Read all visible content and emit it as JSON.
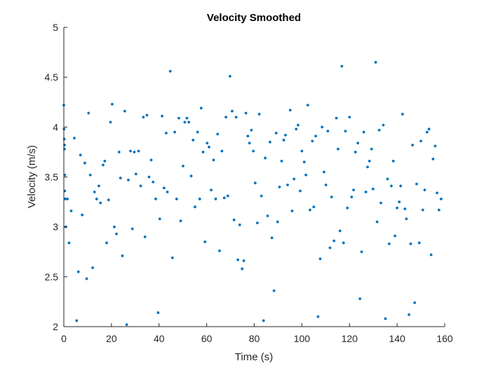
{
  "chart_data": {
    "type": "scatter",
    "title": "Velocity Smoothed",
    "xlabel": "Time (s)",
    "ylabel": "Velocity (m/s)",
    "xlim": [
      0,
      160
    ],
    "ylim": [
      2,
      5
    ],
    "xticks": [
      "0",
      "20",
      "40",
      "60",
      "80",
      "100",
      "120",
      "140",
      "160"
    ],
    "yticks": [
      "2",
      "2.5",
      "3",
      "3.5",
      "4",
      "4.5",
      "5"
    ],
    "grid": false,
    "marker_color": "#0072bd",
    "series": [
      {
        "points": [
          [
            0.0,
            4.22
          ],
          [
            0.1,
            3.98
          ],
          [
            0.2,
            3.88
          ],
          [
            0.3,
            3.82
          ],
          [
            0.3,
            3.78
          ],
          [
            0.4,
            3.52
          ],
          [
            0.4,
            3.36
          ],
          [
            0.6,
            3.28
          ],
          [
            0.8,
            3.0
          ],
          [
            1.5,
            3.28
          ],
          [
            2.2,
            2.84
          ],
          [
            3.1,
            3.16
          ],
          [
            4.4,
            3.89
          ],
          [
            5.4,
            2.06
          ],
          [
            6.1,
            2.55
          ],
          [
            7.0,
            3.72
          ],
          [
            7.7,
            3.12
          ],
          [
            8.8,
            3.64
          ],
          [
            9.6,
            2.48
          ],
          [
            10.4,
            4.14
          ],
          [
            11.1,
            3.52
          ],
          [
            12.1,
            2.59
          ],
          [
            12.9,
            3.35
          ],
          [
            13.8,
            3.28
          ],
          [
            14.7,
            3.41
          ],
          [
            15.4,
            3.24
          ],
          [
            16.5,
            3.62
          ],
          [
            17.2,
            3.66
          ],
          [
            18.0,
            2.84
          ],
          [
            18.8,
            3.27
          ],
          [
            19.6,
            4.05
          ],
          [
            20.3,
            4.23
          ],
          [
            21.2,
            3.0
          ],
          [
            22.1,
            2.93
          ],
          [
            23.2,
            3.75
          ],
          [
            23.8,
            3.49
          ],
          [
            24.6,
            2.71
          ],
          [
            25.6,
            4.16
          ],
          [
            26.4,
            2.02
          ],
          [
            27.1,
            3.47
          ],
          [
            28.0,
            3.76
          ],
          [
            28.8,
            2.98
          ],
          [
            29.6,
            3.75
          ],
          [
            30.3,
            3.53
          ],
          [
            31.4,
            3.76
          ],
          [
            32.3,
            3.41
          ],
          [
            33.4,
            4.1
          ],
          [
            34.1,
            2.9
          ],
          [
            34.9,
            4.12
          ],
          [
            35.8,
            3.5
          ],
          [
            36.7,
            3.67
          ],
          [
            37.5,
            3.45
          ],
          [
            38.6,
            3.28
          ],
          [
            39.6,
            2.14
          ],
          [
            40.3,
            3.08
          ],
          [
            41.3,
            4.11
          ],
          [
            42.1,
            3.39
          ],
          [
            43.0,
            3.94
          ],
          [
            43.5,
            3.35
          ],
          [
            44.7,
            4.56
          ],
          [
            45.6,
            2.69
          ],
          [
            46.6,
            3.95
          ],
          [
            47.4,
            3.28
          ],
          [
            48.3,
            4.09
          ],
          [
            49.1,
            3.06
          ],
          [
            50.1,
            3.61
          ],
          [
            50.8,
            4.05
          ],
          [
            51.7,
            4.09
          ],
          [
            52.5,
            4.05
          ],
          [
            53.5,
            3.51
          ],
          [
            54.3,
            3.87
          ],
          [
            55.1,
            3.2
          ],
          [
            56.2,
            3.95
          ],
          [
            57.1,
            3.28
          ],
          [
            57.7,
            4.19
          ],
          [
            58.5,
            3.75
          ],
          [
            59.3,
            2.85
          ],
          [
            60.2,
            3.84
          ],
          [
            61.0,
            3.8
          ],
          [
            61.9,
            3.37
          ],
          [
            62.9,
            3.67
          ],
          [
            63.8,
            3.28
          ],
          [
            64.6,
            3.93
          ],
          [
            65.4,
            2.76
          ],
          [
            66.4,
            3.76
          ],
          [
            67.4,
            3.29
          ],
          [
            68.1,
            4.1
          ],
          [
            68.9,
            3.31
          ],
          [
            69.8,
            4.51
          ],
          [
            70.7,
            4.16
          ],
          [
            71.5,
            3.07
          ],
          [
            72.4,
            4.1
          ],
          [
            73.1,
            2.67
          ],
          [
            73.9,
            3.02
          ],
          [
            74.9,
            2.58
          ],
          [
            75.6,
            2.66
          ],
          [
            76.5,
            4.14
          ],
          [
            77.3,
            3.91
          ],
          [
            78.0,
            3.84
          ],
          [
            78.8,
            3.97
          ],
          [
            79.6,
            3.76
          ],
          [
            80.4,
            3.44
          ],
          [
            81.3,
            3.04
          ],
          [
            82.1,
            4.13
          ],
          [
            83.0,
            3.31
          ],
          [
            83.9,
            2.06
          ],
          [
            84.6,
            3.69
          ],
          [
            85.6,
            3.11
          ],
          [
            86.6,
            3.85
          ],
          [
            87.4,
            2.89
          ],
          [
            88.3,
            2.36
          ],
          [
            89.2,
            3.94
          ],
          [
            89.8,
            3.05
          ],
          [
            90.6,
            3.4
          ],
          [
            91.5,
            3.66
          ],
          [
            92.4,
            3.87
          ],
          [
            93.1,
            3.92
          ],
          [
            94.0,
            3.42
          ],
          [
            95.1,
            4.17
          ],
          [
            95.9,
            3.16
          ],
          [
            96.7,
            3.48
          ],
          [
            97.6,
            3.98
          ],
          [
            98.4,
            4.02
          ],
          [
            99.3,
            3.36
          ],
          [
            100.0,
            3.76
          ],
          [
            101.0,
            3.65
          ],
          [
            101.7,
            3.52
          ],
          [
            102.5,
            4.22
          ],
          [
            103.4,
            3.17
          ],
          [
            104.4,
            3.86
          ],
          [
            105.0,
            3.2
          ],
          [
            105.8,
            3.91
          ],
          [
            106.8,
            2.1
          ],
          [
            107.7,
            2.68
          ],
          [
            108.5,
            4.0
          ],
          [
            109.3,
            3.55
          ],
          [
            110.1,
            3.42
          ],
          [
            110.9,
            3.96
          ],
          [
            111.8,
            2.79
          ],
          [
            112.5,
            3.3
          ],
          [
            113.5,
            2.86
          ],
          [
            114.5,
            4.09
          ],
          [
            115.2,
            3.78
          ],
          [
            116.0,
            2.96
          ],
          [
            116.8,
            4.61
          ],
          [
            117.5,
            2.84
          ],
          [
            118.3,
            3.96
          ],
          [
            119.1,
            3.19
          ],
          [
            120.0,
            4.1
          ],
          [
            120.9,
            3.3
          ],
          [
            121.7,
            3.37
          ],
          [
            122.5,
            3.75
          ],
          [
            123.5,
            3.84
          ],
          [
            124.4,
            2.28
          ],
          [
            125.1,
            2.75
          ],
          [
            126.0,
            3.95
          ],
          [
            126.9,
            3.35
          ],
          [
            127.6,
            3.6
          ],
          [
            128.4,
            3.66
          ],
          [
            129.3,
            3.78
          ],
          [
            129.9,
            3.38
          ],
          [
            131.0,
            4.65
          ],
          [
            131.6,
            3.05
          ],
          [
            132.5,
            3.97
          ],
          [
            133.2,
            3.24
          ],
          [
            134.2,
            4.02
          ],
          [
            135.1,
            2.08
          ],
          [
            136.0,
            3.48
          ],
          [
            136.7,
            2.83
          ],
          [
            137.6,
            3.41
          ],
          [
            138.4,
            3.66
          ],
          [
            139.1,
            2.91
          ],
          [
            140.0,
            3.19
          ],
          [
            140.9,
            3.25
          ],
          [
            141.5,
            3.41
          ],
          [
            142.3,
            4.13
          ],
          [
            143.3,
            3.18
          ],
          [
            143.9,
            3.08
          ],
          [
            145.0,
            2.12
          ],
          [
            145.7,
            2.83
          ],
          [
            146.5,
            3.82
          ],
          [
            147.4,
            2.24
          ],
          [
            148.2,
            3.43
          ],
          [
            149.3,
            2.84
          ],
          [
            150.0,
            3.86
          ],
          [
            150.8,
            3.17
          ],
          [
            151.6,
            3.37
          ],
          [
            152.6,
            3.95
          ],
          [
            153.4,
            3.98
          ],
          [
            154.3,
            2.72
          ],
          [
            155.1,
            3.68
          ],
          [
            156.0,
            3.81
          ],
          [
            156.8,
            3.34
          ],
          [
            157.6,
            3.17
          ],
          [
            158.5,
            3.28
          ]
        ]
      }
    ]
  }
}
